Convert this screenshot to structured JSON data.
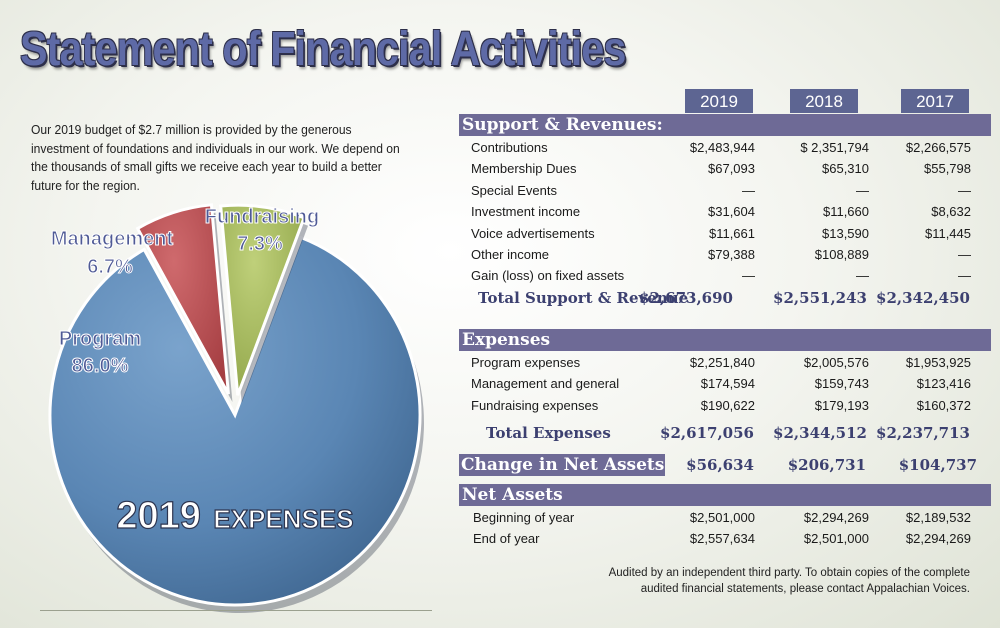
{
  "title": "Statement of Financial Activities",
  "intro": "Our 2019 budget of $2.7 million is provided by the generous investment of foundations and individuals in our work. We depend on the thousands of small gifts we receive each year to build a better future for the region.",
  "chart_data": {
    "type": "pie",
    "title_main": "2019",
    "title_sub": "EXPENSES",
    "slices": [
      {
        "name": "Program",
        "value": 86.0,
        "label": "86.0%",
        "color": "#5a86b4"
      },
      {
        "name": "Management",
        "value": 6.7,
        "label": "6.7%",
        "color": "#b84b4f"
      },
      {
        "name": "Fundraising",
        "value": 7.3,
        "label": "7.3%",
        "color": "#a5bb5a"
      }
    ]
  },
  "years": [
    "2019",
    "2018",
    "2017"
  ],
  "support": {
    "header": "Support & Revenues:",
    "rows": [
      {
        "label": "Contributions",
        "values": [
          "$2,483,944",
          "$ 2,351,794",
          "$2,266,575"
        ]
      },
      {
        "label": "Membership Dues",
        "values": [
          "$67,093",
          "$65,310",
          "$55,798"
        ]
      },
      {
        "label": "Special Events",
        "values": [
          "—",
          "—",
          "—"
        ]
      },
      {
        "label": "Investment income",
        "values": [
          "$31,604",
          "$11,660",
          "$8,632"
        ]
      },
      {
        "label": "Voice advertisements",
        "values": [
          "$11,661",
          "$13,590",
          "$11,445"
        ]
      },
      {
        "label": "Other income",
        "values": [
          "$79,388",
          "$108,889",
          "—"
        ]
      },
      {
        "label": "Gain (loss) on fixed assets",
        "values": [
          "—",
          "—",
          "—"
        ]
      }
    ],
    "total_label": "Total Support & Revenue",
    "total_values": [
      "$2,673,690",
      "$2,551,243",
      "$2,342,450"
    ]
  },
  "expenses": {
    "header": "Expenses",
    "rows": [
      {
        "label": "Program expenses",
        "values": [
          "$2,251,840",
          "$2,005,576",
          "$1,953,925"
        ]
      },
      {
        "label": "Management and general",
        "values": [
          "$174,594",
          "$159,743",
          "$123,416"
        ]
      },
      {
        "label": "Fundraising expenses",
        "values": [
          "$190,622",
          "$179,193",
          "$160,372"
        ]
      }
    ],
    "total_label": "Total Expenses",
    "total_values": [
      "$2,617,056",
      "$2,344,512",
      "$2,237,713"
    ]
  },
  "change": {
    "label": "Change in Net Assets",
    "values": [
      "$56,634",
      "$206,731",
      "$104,737"
    ]
  },
  "net_assets": {
    "header": "Net Assets",
    "rows": [
      {
        "label": "Beginning of year",
        "values": [
          "$2,501,000",
          "$2,294,269",
          "$2,189,532"
        ]
      },
      {
        "label": "End of year",
        "values": [
          "$2,557,634",
          "$2,501,000",
          "$2,294,269"
        ]
      }
    ]
  },
  "audit_note": {
    "line1": "Audited by an independent third party. To obtain copies of the complete",
    "line2": "audited financial statements, please contact Appalachian Voices."
  }
}
